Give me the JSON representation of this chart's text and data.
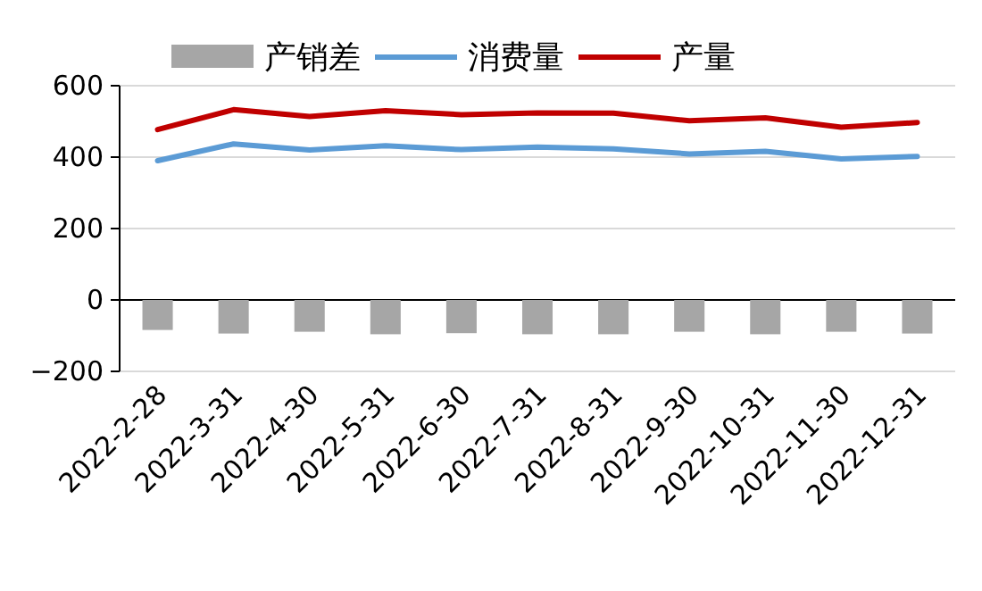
{
  "chart_data": {
    "type": "line",
    "categories": [
      "2022-2-28",
      "2022-3-31",
      "2022-4-30",
      "2022-5-31",
      "2022-6-30",
      "2022-7-31",
      "2022-8-31",
      "2022-9-30",
      "2022-10-31",
      "2022-11-30",
      "2022-12-31"
    ],
    "series": [
      {
        "name": "产销差",
        "type": "bar",
        "color": "#a6a6a6",
        "values": [
          -84,
          -94,
          -89,
          -96,
          -93,
          -96,
          -96,
          -89,
          -96,
          -89,
          -94
        ]
      },
      {
        "name": "消费量",
        "color": "#5b9bd5",
        "values": [
          390,
          437,
          420,
          432,
          421,
          428,
          423,
          409,
          416,
          395,
          402
        ]
      },
      {
        "name": "产量",
        "color": "#c00000",
        "values": [
          477,
          533,
          514,
          530,
          519,
          524,
          523,
          502,
          510,
          484,
          497
        ]
      }
    ],
    "ylim": [
      -200,
      600
    ],
    "yticks": [
      -200,
      0,
      200,
      400,
      600
    ],
    "grid": "y",
    "legend": "top"
  }
}
